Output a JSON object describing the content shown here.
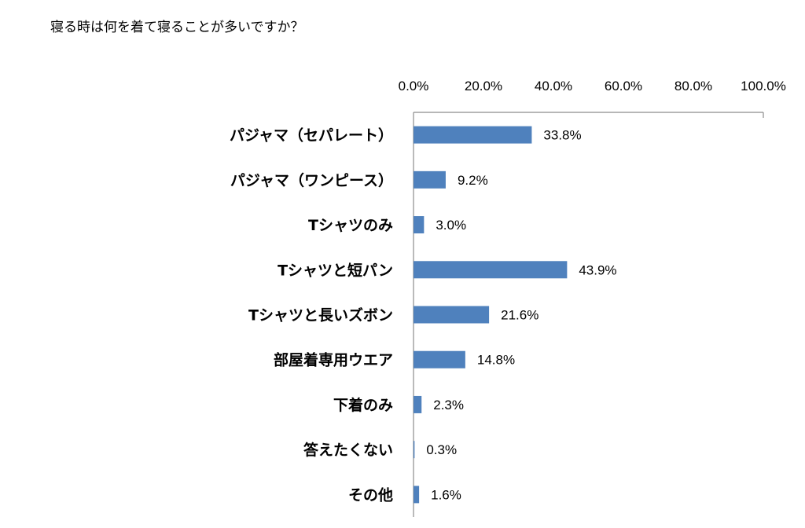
{
  "title": "寝る時は何を着て寝ることが多いですか？",
  "chart_data": {
    "type": "bar",
    "orientation": "horizontal",
    "title": "寝る時は何を着て寝ることが多いですか？",
    "categories": [
      "パジャマ（セパレート）",
      "パジャマ（ワンピース）",
      "Tシャツのみ",
      "Tシャツと短パン",
      "Tシャツと長いズボン",
      "部屋着専用ウエア",
      "下着のみ",
      "答えたくない",
      "その他"
    ],
    "values": [
      33.8,
      9.2,
      3.0,
      43.9,
      21.6,
      14.8,
      2.3,
      0.3,
      1.6
    ],
    "data_labels": [
      "33.8%",
      "9.2%",
      "3.0%",
      "43.9%",
      "21.6%",
      "14.8%",
      "2.3%",
      "0.3%",
      "1.6%"
    ],
    "xlim": [
      0,
      100
    ],
    "x_ticks": [
      0,
      20,
      40,
      60,
      80,
      100
    ],
    "x_tick_labels": [
      "0.0%",
      "20.0%",
      "40.0%",
      "60.0%",
      "80.0%",
      "100.0%"
    ],
    "x_axis_position": "top",
    "xlabel": "",
    "ylabel": "",
    "grid": false,
    "legend": false,
    "bar_color": "#4f81bd"
  }
}
